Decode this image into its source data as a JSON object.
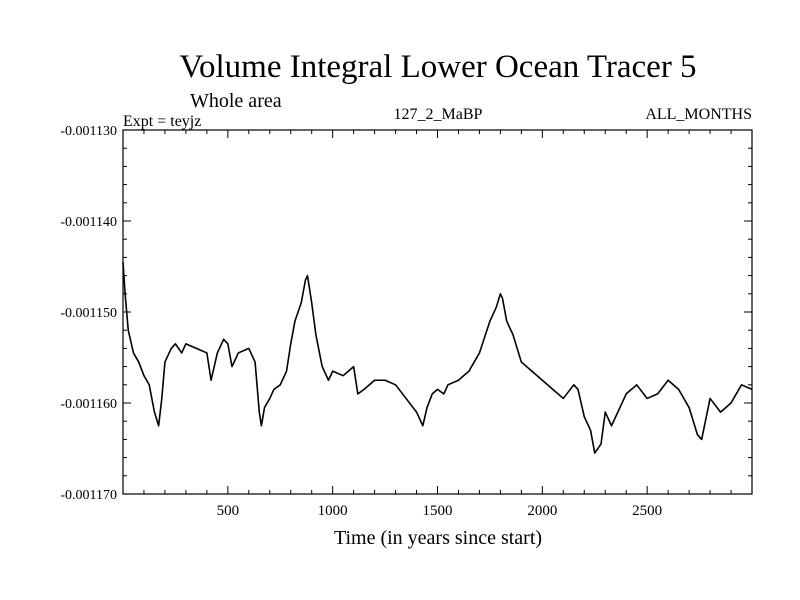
{
  "chart_data": {
    "type": "line",
    "title": "Volume Integral Lower Ocean Tracer 5",
    "subtitle": "Whole area",
    "expt_label": "Expt = teyjz",
    "run_label": "127_2_MaBP",
    "months_label": "ALL_MONTHS",
    "xlabel": "Time (in years since start)",
    "ylabel": "",
    "xlim": [
      0,
      3000
    ],
    "ylim": [
      -0.00117,
      -0.00113
    ],
    "x_ticks": [
      500,
      1000,
      1500,
      2000,
      2500
    ],
    "x_tick_labels": [
      "500",
      "1000",
      "1500",
      "2000",
      "2500"
    ],
    "y_ticks": [
      -0.00113,
      -0.00114,
      -0.00115,
      -0.00116,
      -0.00117
    ],
    "y_tick_labels": [
      "-0.001130",
      "-0.001140",
      "-0.001150",
      "-0.001160",
      "-0.001170"
    ],
    "line_color": "#000000",
    "series": [
      {
        "name": "Volume Integral Lower Ocean Tracer 5",
        "x": [
          0,
          10,
          25,
          50,
          75,
          100,
          125,
          150,
          170,
          185,
          200,
          230,
          250,
          280,
          300,
          350,
          400,
          420,
          450,
          480,
          500,
          520,
          550,
          600,
          630,
          650,
          660,
          675,
          700,
          720,
          750,
          780,
          800,
          820,
          850,
          870,
          880,
          900,
          920,
          950,
          980,
          1000,
          1050,
          1100,
          1120,
          1150,
          1200,
          1250,
          1300,
          1350,
          1400,
          1430,
          1450,
          1475,
          1500,
          1530,
          1550,
          1600,
          1650,
          1700,
          1750,
          1780,
          1800,
          1810,
          1830,
          1860,
          1900,
          1950,
          2000,
          2050,
          2100,
          2150,
          2170,
          2200,
          2230,
          2250,
          2280,
          2300,
          2330,
          2350,
          2400,
          2450,
          2500,
          2550,
          2600,
          2650,
          2700,
          2740,
          2760,
          2800,
          2850,
          2900,
          2950,
          3000
        ],
        "y": [
          -0.0011445,
          -0.001148,
          -0.001152,
          -0.0011545,
          -0.0011555,
          -0.001157,
          -0.001158,
          -0.001161,
          -0.0011625,
          -0.0011595,
          -0.0011555,
          -0.001154,
          -0.0011535,
          -0.0011545,
          -0.0011535,
          -0.001154,
          -0.0011545,
          -0.0011575,
          -0.0011545,
          -0.001153,
          -0.0011535,
          -0.001156,
          -0.0011545,
          -0.001154,
          -0.0011555,
          -0.001161,
          -0.0011625,
          -0.0011605,
          -0.0011595,
          -0.0011585,
          -0.001158,
          -0.0011565,
          -0.0011535,
          -0.001151,
          -0.001149,
          -0.0011465,
          -0.001146,
          -0.001149,
          -0.0011525,
          -0.001156,
          -0.0011575,
          -0.0011565,
          -0.001157,
          -0.001156,
          -0.001159,
          -0.0011585,
          -0.0011575,
          -0.0011575,
          -0.001158,
          -0.0011595,
          -0.001161,
          -0.0011625,
          -0.0011605,
          -0.001159,
          -0.0011585,
          -0.001159,
          -0.001158,
          -0.0011575,
          -0.0011565,
          -0.0011545,
          -0.001151,
          -0.0011495,
          -0.001148,
          -0.0011485,
          -0.001151,
          -0.0011525,
          -0.0011555,
          -0.0011565,
          -0.0011575,
          -0.0011585,
          -0.0011595,
          -0.001158,
          -0.0011585,
          -0.0011615,
          -0.001163,
          -0.0011655,
          -0.0011645,
          -0.001161,
          -0.0011625,
          -0.0011615,
          -0.001159,
          -0.001158,
          -0.0011595,
          -0.001159,
          -0.0011575,
          -0.0011585,
          -0.0011605,
          -0.0011635,
          -0.001164,
          -0.0011595,
          -0.001161,
          -0.00116,
          -0.001158,
          -0.0011585
        ]
      }
    ]
  }
}
